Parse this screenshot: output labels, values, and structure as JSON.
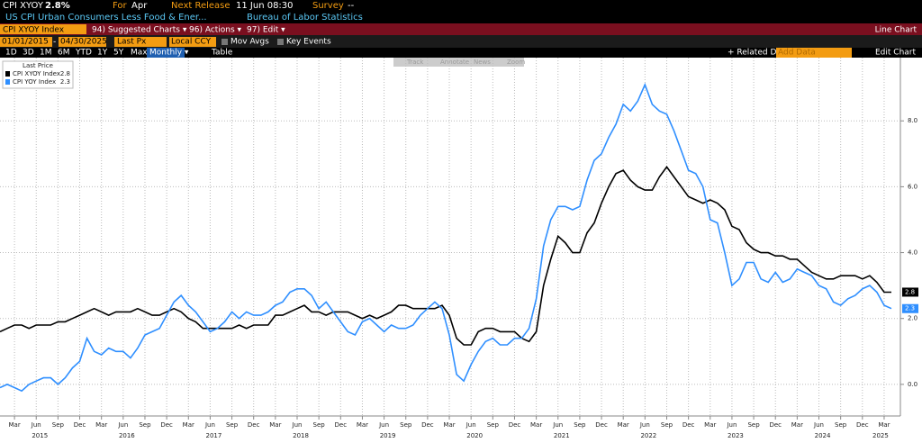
{
  "header": {
    "ticker": "CPI XYOY",
    "last": "2.8%",
    "for_label": "For",
    "for_value": "Apr",
    "next_label": "Next Release",
    "next_value": "11 Jun 08:30",
    "survey_label": "Survey",
    "survey_value": "--",
    "description": "US CPI Urban Consumers Less Food & Ener...",
    "source": "Bureau of Labor Statistics"
  },
  "toolbar": {
    "security": "CPI XYOY Index",
    "suggested": "94) Suggested Charts ▾",
    "actions": "96) Actions ▾",
    "edit": "97) Edit ▾",
    "chart_type": "Line Chart",
    "start_date": "01/01/2015",
    "dash": "-",
    "end_date": "04/30/2025",
    "field": "Last Px",
    "currency": "Local CCY",
    "mov_avgs": "Mov Avgs",
    "key_events": "Key Events",
    "ranges": [
      "1D",
      "3D",
      "1M",
      "6M",
      "YTD",
      "1Y",
      "5Y",
      "Max"
    ],
    "period": "Monthly ▾",
    "table": "Table",
    "related": "+ Related Dat",
    "add_data": "Add Data",
    "edit_chart": "Edit Chart",
    "tools": [
      "Track",
      "Annotate",
      "News",
      "Zoom"
    ]
  },
  "chart_data": {
    "type": "line",
    "legend_title": "Last Price",
    "grid": true,
    "x": [
      "2015-01",
      "2015-02",
      "2015-03",
      "2015-04",
      "2015-05",
      "2015-06",
      "2015-07",
      "2015-08",
      "2015-09",
      "2015-10",
      "2015-11",
      "2015-12",
      "2016-01",
      "2016-02",
      "2016-03",
      "2016-04",
      "2016-05",
      "2016-06",
      "2016-07",
      "2016-08",
      "2016-09",
      "2016-10",
      "2016-11",
      "2016-12",
      "2017-01",
      "2017-02",
      "2017-03",
      "2017-04",
      "2017-05",
      "2017-06",
      "2017-07",
      "2017-08",
      "2017-09",
      "2017-10",
      "2017-11",
      "2017-12",
      "2018-01",
      "2018-02",
      "2018-03",
      "2018-04",
      "2018-05",
      "2018-06",
      "2018-07",
      "2018-08",
      "2018-09",
      "2018-10",
      "2018-11",
      "2018-12",
      "2019-01",
      "2019-02",
      "2019-03",
      "2019-04",
      "2019-05",
      "2019-06",
      "2019-07",
      "2019-08",
      "2019-09",
      "2019-10",
      "2019-11",
      "2019-12",
      "2020-01",
      "2020-02",
      "2020-03",
      "2020-04",
      "2020-05",
      "2020-06",
      "2020-07",
      "2020-08",
      "2020-09",
      "2020-10",
      "2020-11",
      "2020-12",
      "2021-01",
      "2021-02",
      "2021-03",
      "2021-04",
      "2021-05",
      "2021-06",
      "2021-07",
      "2021-08",
      "2021-09",
      "2021-10",
      "2021-11",
      "2021-12",
      "2022-01",
      "2022-02",
      "2022-03",
      "2022-04",
      "2022-05",
      "2022-06",
      "2022-07",
      "2022-08",
      "2022-09",
      "2022-10",
      "2022-11",
      "2022-12",
      "2023-01",
      "2023-02",
      "2023-03",
      "2023-04",
      "2023-05",
      "2023-06",
      "2023-07",
      "2023-08",
      "2023-09",
      "2023-10",
      "2023-11",
      "2023-12",
      "2024-01",
      "2024-02",
      "2024-03",
      "2024-04",
      "2024-05",
      "2024-06",
      "2024-07",
      "2024-08",
      "2024-09",
      "2024-10",
      "2024-11",
      "2024-12",
      "2025-01",
      "2025-02",
      "2025-03",
      "2025-04"
    ],
    "series": [
      {
        "name": "CPI XYOY Index",
        "color": "#000000",
        "values": [
          1.6,
          1.7,
          1.8,
          1.8,
          1.7,
          1.8,
          1.8,
          1.8,
          1.9,
          1.9,
          2.0,
          2.1,
          2.2,
          2.3,
          2.2,
          2.1,
          2.2,
          2.2,
          2.2,
          2.3,
          2.2,
          2.1,
          2.1,
          2.2,
          2.3,
          2.2,
          2.0,
          1.9,
          1.7,
          1.7,
          1.7,
          1.7,
          1.7,
          1.8,
          1.7,
          1.8,
          1.8,
          1.8,
          2.1,
          2.1,
          2.2,
          2.3,
          2.4,
          2.2,
          2.2,
          2.1,
          2.2,
          2.2,
          2.2,
          2.1,
          2.0,
          2.1,
          2.0,
          2.1,
          2.2,
          2.4,
          2.4,
          2.3,
          2.3,
          2.3,
          2.3,
          2.4,
          2.1,
          1.4,
          1.2,
          1.2,
          1.6,
          1.7,
          1.7,
          1.6,
          1.6,
          1.6,
          1.4,
          1.3,
          1.6,
          3.0,
          3.8,
          4.5,
          4.3,
          4.0,
          4.0,
          4.6,
          4.9,
          5.5,
          6.0,
          6.4,
          6.5,
          6.2,
          6.0,
          5.9,
          5.9,
          6.3,
          6.6,
          6.3,
          6.0,
          5.7,
          5.6,
          5.5,
          5.6,
          5.5,
          5.3,
          4.8,
          4.7,
          4.3,
          4.1,
          4.0,
          4.0,
          3.9,
          3.9,
          3.8,
          3.8,
          3.6,
          3.4,
          3.3,
          3.2,
          3.2,
          3.3,
          3.3,
          3.3,
          3.2,
          3.3,
          3.1,
          2.8,
          2.8
        ]
      },
      {
        "name": "CPI YOY Index",
        "color": "#2f8fff",
        "values": [
          -0.1,
          0.0,
          -0.1,
          -0.2,
          0.0,
          0.1,
          0.2,
          0.2,
          0.0,
          0.2,
          0.5,
          0.7,
          1.4,
          1.0,
          0.9,
          1.1,
          1.0,
          1.0,
          0.8,
          1.1,
          1.5,
          1.6,
          1.7,
          2.1,
          2.5,
          2.7,
          2.4,
          2.2,
          1.9,
          1.6,
          1.7,
          1.9,
          2.2,
          2.0,
          2.2,
          2.1,
          2.1,
          2.2,
          2.4,
          2.5,
          2.8,
          2.9,
          2.9,
          2.7,
          2.3,
          2.5,
          2.2,
          1.9,
          1.6,
          1.5,
          1.9,
          2.0,
          1.8,
          1.6,
          1.8,
          1.7,
          1.7,
          1.8,
          2.1,
          2.3,
          2.5,
          2.3,
          1.5,
          0.3,
          0.1,
          0.6,
          1.0,
          1.3,
          1.4,
          1.2,
          1.2,
          1.4,
          1.4,
          1.7,
          2.6,
          4.2,
          5.0,
          5.4,
          5.4,
          5.3,
          5.4,
          6.2,
          6.8,
          7.0,
          7.5,
          7.9,
          8.5,
          8.3,
          8.6,
          9.1,
          8.5,
          8.3,
          8.2,
          7.7,
          7.1,
          6.5,
          6.4,
          6.0,
          5.0,
          4.9,
          4.0,
          3.0,
          3.2,
          3.7,
          3.7,
          3.2,
          3.1,
          3.4,
          3.1,
          3.2,
          3.5,
          3.4,
          3.3,
          3.0,
          2.9,
          2.5,
          2.4,
          2.6,
          2.7,
          2.9,
          3.0,
          2.8,
          2.4,
          2.3
        ]
      }
    ],
    "ylim": [
      -0.96,
      9.92
    ],
    "yticks": [
      {
        "value": 0,
        "label": "0.0"
      },
      {
        "value": 2,
        "label": "2.0"
      },
      {
        "value": 4,
        "label": "4.0"
      },
      {
        "value": 6,
        "label": "6.0"
      },
      {
        "value": 8,
        "label": "8.0"
      }
    ],
    "xticks": [
      {
        "value": "2015-03",
        "label": "Mar"
      },
      {
        "value": "2015-06",
        "label": "Jun"
      },
      {
        "value": "2015-09",
        "label": "Sep"
      },
      {
        "value": "2015-12",
        "label": "Dec"
      },
      {
        "value": "2016-03",
        "label": "Mar"
      },
      {
        "value": "2016-06",
        "label": "Jun"
      },
      {
        "value": "2016-09",
        "label": "Sep"
      },
      {
        "value": "2016-12",
        "label": "Dec"
      },
      {
        "value": "2017-03",
        "label": "Mar"
      },
      {
        "value": "2017-06",
        "label": "Jun"
      },
      {
        "value": "2017-09",
        "label": "Sep"
      },
      {
        "value": "2017-12",
        "label": "Dec"
      },
      {
        "value": "2018-03",
        "label": "Mar"
      },
      {
        "value": "2018-06",
        "label": "Jun"
      },
      {
        "value": "2018-09",
        "label": "Sep"
      },
      {
        "value": "2018-12",
        "label": "Dec"
      },
      {
        "value": "2019-03",
        "label": "Mar"
      },
      {
        "value": "2019-06",
        "label": "Jun"
      },
      {
        "value": "2019-09",
        "label": "Sep"
      },
      {
        "value": "2019-12",
        "label": "Dec"
      },
      {
        "value": "2020-03",
        "label": "Mar"
      },
      {
        "value": "2020-06",
        "label": "Jun"
      },
      {
        "value": "2020-09",
        "label": "Sep"
      },
      {
        "value": "2020-12",
        "label": "Dec"
      },
      {
        "value": "2021-03",
        "label": "Mar"
      },
      {
        "value": "2021-06",
        "label": "Jun"
      },
      {
        "value": "2021-09",
        "label": "Sep"
      },
      {
        "value": "2021-12",
        "label": "Dec"
      },
      {
        "value": "2022-03",
        "label": "Mar"
      },
      {
        "value": "2022-06",
        "label": "Jun"
      },
      {
        "value": "2022-09",
        "label": "Sep"
      },
      {
        "value": "2022-12",
        "label": "Dec"
      },
      {
        "value": "2023-03",
        "label": "Mar"
      },
      {
        "value": "2023-06",
        "label": "Jun"
      },
      {
        "value": "2023-09",
        "label": "Sep"
      },
      {
        "value": "2023-12",
        "label": "Dec"
      },
      {
        "value": "2024-03",
        "label": "Mar"
      },
      {
        "value": "2024-06",
        "label": "Jun"
      },
      {
        "value": "2024-09",
        "label": "Sep"
      },
      {
        "value": "2024-12",
        "label": "Dec"
      },
      {
        "value": "2025-03",
        "label": "Mar"
      }
    ],
    "year_labels": [
      "2015",
      "2016",
      "2017",
      "2018",
      "2019",
      "2020",
      "2021",
      "2022",
      "2023",
      "2024",
      "2025"
    ]
  }
}
